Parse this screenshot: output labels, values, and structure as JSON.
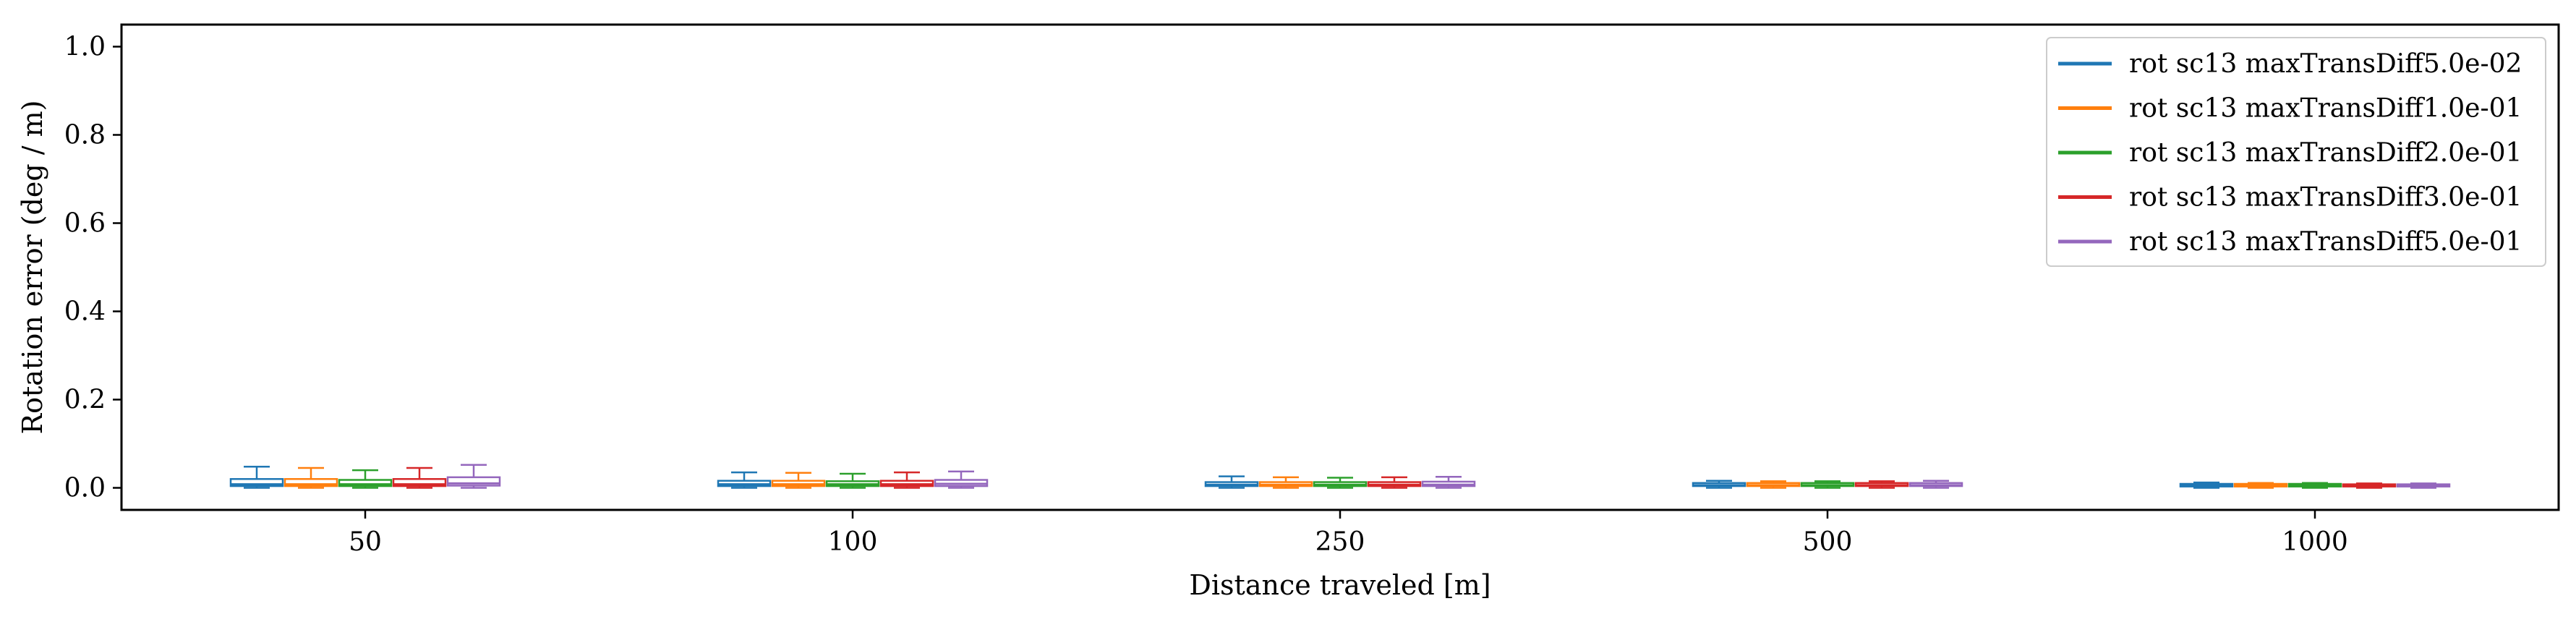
{
  "chart_data": {
    "type": "box",
    "xlabel": "Distance traveled [m]",
    "ylabel": "Rotation error (deg / m)",
    "categories": [
      "50",
      "100",
      "250",
      "500",
      "1000"
    ],
    "ylim": [
      -0.05,
      1.05
    ],
    "yticks": [
      "0.0",
      "0.2",
      "0.4",
      "0.6",
      "0.8",
      "1.0"
    ],
    "ytick_values": [
      0.0,
      0.2,
      0.4,
      0.6,
      0.8,
      1.0
    ],
    "grid": false,
    "legend_position": "top-right",
    "series": [
      {
        "name": "rot sc13 maxTransDiff5.0e-02",
        "color": "#1f77b4",
        "boxes": [
          {
            "whislo": 0.0,
            "q1": 0.004,
            "med": 0.008,
            "q3": 0.02,
            "whishi": 0.048
          },
          {
            "whislo": 0.0,
            "q1": 0.004,
            "med": 0.008,
            "q3": 0.016,
            "whishi": 0.035
          },
          {
            "whislo": 0.0,
            "q1": 0.004,
            "med": 0.007,
            "q3": 0.013,
            "whishi": 0.026
          },
          {
            "whislo": 0.0,
            "q1": 0.004,
            "med": 0.006,
            "q3": 0.011,
            "whishi": 0.016
          },
          {
            "whislo": 0.0,
            "q1": 0.003,
            "med": 0.005,
            "q3": 0.009,
            "whishi": 0.012
          }
        ]
      },
      {
        "name": "rot sc13 maxTransDiff1.0e-01",
        "color": "#ff7f0e",
        "boxes": [
          {
            "whislo": 0.0,
            "q1": 0.004,
            "med": 0.008,
            "q3": 0.02,
            "whishi": 0.045
          },
          {
            "whislo": 0.0,
            "q1": 0.004,
            "med": 0.008,
            "q3": 0.016,
            "whishi": 0.034
          },
          {
            "whislo": 0.0,
            "q1": 0.004,
            "med": 0.007,
            "q3": 0.013,
            "whishi": 0.024
          },
          {
            "whislo": 0.0,
            "q1": 0.004,
            "med": 0.006,
            "q3": 0.011,
            "whishi": 0.015
          },
          {
            "whislo": 0.0,
            "q1": 0.003,
            "med": 0.005,
            "q3": 0.009,
            "whishi": 0.011
          }
        ]
      },
      {
        "name": "rot sc13 maxTransDiff2.0e-01",
        "color": "#2ca02c",
        "boxes": [
          {
            "whislo": 0.0,
            "q1": 0.004,
            "med": 0.008,
            "q3": 0.018,
            "whishi": 0.04
          },
          {
            "whislo": 0.0,
            "q1": 0.004,
            "med": 0.008,
            "q3": 0.015,
            "whishi": 0.032
          },
          {
            "whislo": 0.0,
            "q1": 0.004,
            "med": 0.007,
            "q3": 0.013,
            "whishi": 0.023
          },
          {
            "whislo": 0.0,
            "q1": 0.004,
            "med": 0.006,
            "q3": 0.011,
            "whishi": 0.015
          },
          {
            "whislo": 0.0,
            "q1": 0.003,
            "med": 0.005,
            "q3": 0.009,
            "whishi": 0.011
          }
        ]
      },
      {
        "name": "rot sc13 maxTransDiff3.0e-01",
        "color": "#d62728",
        "boxes": [
          {
            "whislo": 0.0,
            "q1": 0.004,
            "med": 0.008,
            "q3": 0.02,
            "whishi": 0.045
          },
          {
            "whislo": 0.0,
            "q1": 0.004,
            "med": 0.008,
            "q3": 0.016,
            "whishi": 0.035
          },
          {
            "whislo": 0.0,
            "q1": 0.004,
            "med": 0.007,
            "q3": 0.013,
            "whishi": 0.024
          },
          {
            "whislo": 0.0,
            "q1": 0.004,
            "med": 0.006,
            "q3": 0.011,
            "whishi": 0.015
          },
          {
            "whislo": 0.0,
            "q1": 0.003,
            "med": 0.005,
            "q3": 0.008,
            "whishi": 0.01
          }
        ]
      },
      {
        "name": "rot sc13 maxTransDiff5.0e-01",
        "color": "#9467bd",
        "boxes": [
          {
            "whislo": 0.0,
            "q1": 0.005,
            "med": 0.01,
            "q3": 0.024,
            "whishi": 0.052
          },
          {
            "whislo": 0.0,
            "q1": 0.004,
            "med": 0.009,
            "q3": 0.018,
            "whishi": 0.037
          },
          {
            "whislo": 0.0,
            "q1": 0.004,
            "med": 0.007,
            "q3": 0.014,
            "whishi": 0.025
          },
          {
            "whislo": 0.0,
            "q1": 0.004,
            "med": 0.006,
            "q3": 0.011,
            "whishi": 0.016
          },
          {
            "whislo": 0.0,
            "q1": 0.003,
            "med": 0.005,
            "q3": 0.008,
            "whishi": 0.01
          }
        ]
      }
    ]
  }
}
